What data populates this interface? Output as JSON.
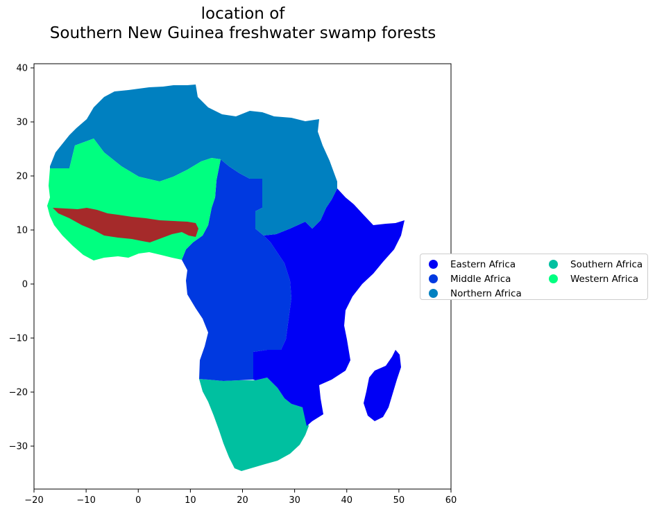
{
  "title": {
    "line1": "location of",
    "line2": "Southern New Guinea freshwater swamp forests"
  },
  "axes": {
    "x_ticks": [
      "−20",
      "−10",
      "0",
      "10",
      "20",
      "30",
      "40",
      "50",
      "60"
    ],
    "y_ticks": [
      "40",
      "30",
      "20",
      "10",
      "0",
      "−10",
      "−20",
      "−30"
    ],
    "xlim": [
      -20,
      60
    ],
    "ylim": [
      -38,
      41
    ]
  },
  "legend": {
    "placement": "right",
    "columns": [
      [
        {
          "label": "Eastern Africa",
          "color": "#0000f5"
        },
        {
          "label": "Middle Africa",
          "color": "#0039e0"
        },
        {
          "label": "Northern Africa",
          "color": "#0080c0"
        }
      ],
      [
        {
          "label": "Southern Africa",
          "color": "#00c0a0"
        },
        {
          "label": "Western Africa",
          "color": "#00ff80"
        }
      ]
    ]
  },
  "highlight": {
    "color": "#a52a2a"
  },
  "colors": {
    "eastern": "#0000f5",
    "middle": "#0039e0",
    "northern": "#0080c0",
    "southern": "#00c0a0",
    "western": "#00ff80",
    "highlight": "#a52a2a"
  }
}
